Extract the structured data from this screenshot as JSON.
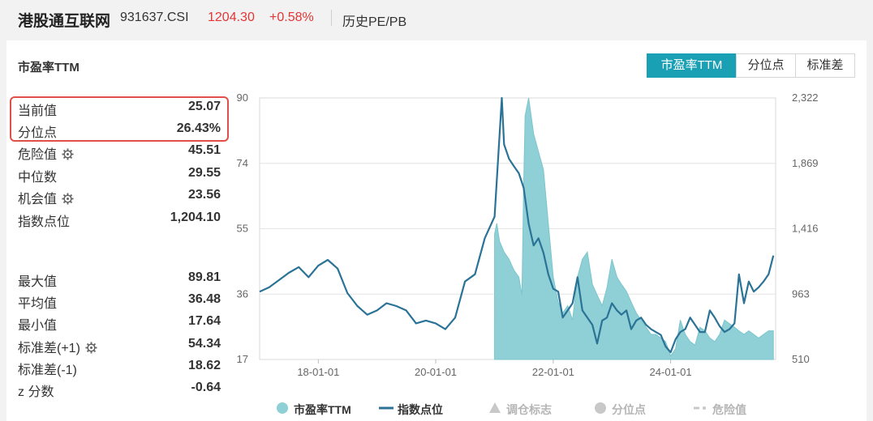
{
  "header": {
    "name": "港股通互联网",
    "code": "931637.CSI",
    "price": "1204.30",
    "change": "+0.58%",
    "link": "历史PE/PB"
  },
  "panel": {
    "title": "市盈率TTM",
    "segments": [
      {
        "label": "市盈率TTM",
        "active": true
      },
      {
        "label": "分位点",
        "active": false
      },
      {
        "label": "标准差",
        "active": false
      }
    ]
  },
  "stats": [
    {
      "label": "当前值",
      "value": "25.07",
      "gear": false
    },
    {
      "label": "分位点",
      "value": "26.43%",
      "gear": false
    },
    {
      "label": "危险值",
      "value": "45.51",
      "gear": true
    },
    {
      "label": "中位数",
      "value": "29.55",
      "gear": false
    },
    {
      "label": "机会值",
      "value": "23.56",
      "gear": true
    },
    {
      "label": "指数点位",
      "value": "1,204.10",
      "gear": false
    },
    {
      "label": "最大值",
      "value": "89.81",
      "gear": false
    },
    {
      "label": "平均值",
      "value": "36.48",
      "gear": false
    },
    {
      "label": "最小值",
      "value": "17.64",
      "gear": false
    },
    {
      "label": "标准差(+1)",
      "value": "54.34",
      "gear": true
    },
    {
      "label": "标准差(-1)",
      "value": "18.62",
      "gear": false
    },
    {
      "label": "z 分数",
      "value": "-0.64",
      "gear": false
    }
  ],
  "chart_data": {
    "type": "line",
    "left_axis": {
      "ticks": [
        "90",
        "74",
        "55",
        "36",
        "17"
      ],
      "range": [
        17,
        90
      ]
    },
    "right_axis": {
      "ticks": [
        "2,322",
        "1,869",
        "1,416",
        "963",
        "510"
      ],
      "range": [
        510,
        2322
      ]
    },
    "x_ticks": [
      "18-01-01",
      "20-01-01",
      "22-01-01",
      "24-01-01"
    ],
    "x_range": [
      "2017-01-01",
      "2025-10-15"
    ],
    "colors": {
      "pe_area": "#8fd0d6",
      "index_line": "#2b7396",
      "grid": "#e4e4e4"
    },
    "series": [
      {
        "name": "市盈率TTM",
        "axis": "left",
        "start": "2021-01-01",
        "dates": [
          "2021-01-01",
          "2021-01-15",
          "2021-02-01",
          "2021-03-01",
          "2021-04-01",
          "2021-05-01",
          "2021-06-01",
          "2021-06-20",
          "2021-07-01",
          "2021-07-10",
          "2021-08-01",
          "2021-09-01",
          "2021-10-01",
          "2021-11-01",
          "2021-12-01",
          "2022-01-01",
          "2022-02-01",
          "2022-03-01",
          "2022-04-01",
          "2022-05-01",
          "2022-06-01",
          "2022-07-01",
          "2022-08-01",
          "2022-09-01",
          "2022-10-01",
          "2022-11-01",
          "2022-12-01",
          "2023-01-01",
          "2023-02-01",
          "2023-03-01",
          "2023-04-01",
          "2023-05-01",
          "2023-06-01",
          "2023-07-01",
          "2023-08-01",
          "2023-09-01",
          "2023-10-01",
          "2023-11-01",
          "2023-12-01",
          "2024-01-01",
          "2024-02-01",
          "2024-03-01",
          "2024-04-01",
          "2024-05-01",
          "2024-06-01",
          "2024-07-01",
          "2024-08-01",
          "2024-09-01",
          "2024-10-01",
          "2024-11-01",
          "2024-12-01",
          "2025-01-01",
          "2025-02-01",
          "2025-03-01",
          "2025-04-01",
          "2025-05-01",
          "2025-06-01",
          "2025-07-01",
          "2025-08-01",
          "2025-09-01",
          "2025-10-01"
        ],
        "values": [
          52,
          55,
          50,
          47,
          45,
          42,
          40,
          35,
          65,
          85,
          90,
          80,
          75,
          70,
          55,
          40,
          33,
          30,
          32,
          28,
          40,
          45,
          47,
          38,
          35,
          32,
          37,
          45,
          40,
          38,
          36,
          33,
          30,
          28,
          26,
          24,
          24,
          23,
          22,
          18,
          20,
          28,
          24,
          22,
          21,
          26,
          25,
          23,
          22,
          24,
          28,
          27,
          26,
          25,
          24,
          25,
          24,
          23,
          24,
          25,
          25
        ]
      },
      {
        "name": "指数点位",
        "axis": "right",
        "dates": [
          "2017-01-01",
          "2017-03-01",
          "2017-05-01",
          "2017-07-01",
          "2017-09-01",
          "2017-11-01",
          "2018-01-01",
          "2018-03-01",
          "2018-05-01",
          "2018-07-01",
          "2018-09-01",
          "2018-11-01",
          "2019-01-01",
          "2019-03-01",
          "2019-05-01",
          "2019-07-01",
          "2019-09-01",
          "2019-11-01",
          "2020-01-01",
          "2020-03-01",
          "2020-05-01",
          "2020-07-01",
          "2020-09-01",
          "2020-11-01",
          "2021-01-01",
          "2021-02-15",
          "2021-03-01",
          "2021-04-01",
          "2021-05-01",
          "2021-06-01",
          "2021-07-01",
          "2021-08-01",
          "2021-09-01",
          "2021-10-01",
          "2021-11-01",
          "2021-12-01",
          "2022-01-01",
          "2022-02-01",
          "2022-03-01",
          "2022-04-01",
          "2022-05-01",
          "2022-06-01",
          "2022-07-01",
          "2022-08-01",
          "2022-09-01",
          "2022-10-01",
          "2022-11-01",
          "2022-12-01",
          "2023-01-01",
          "2023-02-01",
          "2023-03-01",
          "2023-04-01",
          "2023-05-01",
          "2023-06-01",
          "2023-07-01",
          "2023-08-01",
          "2023-09-01",
          "2023-10-01",
          "2023-11-01",
          "2023-12-01",
          "2024-01-01",
          "2024-02-01",
          "2024-03-01",
          "2024-04-01",
          "2024-05-01",
          "2024-06-01",
          "2024-07-01",
          "2024-08-01",
          "2024-09-01",
          "2024-10-01",
          "2024-11-01",
          "2024-12-01",
          "2025-01-01",
          "2025-02-01",
          "2025-03-01",
          "2025-04-01",
          "2025-05-01",
          "2025-06-01",
          "2025-07-01",
          "2025-08-01",
          "2025-09-01",
          "2025-10-01"
        ],
        "values": [
          980,
          1010,
          1060,
          1110,
          1150,
          1080,
          1160,
          1200,
          1140,
          970,
          880,
          820,
          850,
          900,
          880,
          850,
          760,
          780,
          760,
          720,
          800,
          1050,
          1100,
          1350,
          1500,
          2322,
          2000,
          1900,
          1850,
          1800,
          1700,
          1450,
          1300,
          1350,
          1250,
          1100,
          1000,
          980,
          800,
          850,
          900,
          1080,
          850,
          800,
          750,
          620,
          780,
          800,
          900,
          850,
          820,
          850,
          720,
          780,
          800,
          750,
          720,
          700,
          680,
          600,
          560,
          650,
          700,
          720,
          800,
          750,
          700,
          700,
          850,
          800,
          740,
          700,
          720,
          760,
          1100,
          900,
          1050,
          980,
          1010,
          1050,
          1100,
          1230
        ]
      }
    ]
  },
  "legend": [
    {
      "label": "市盈率TTM",
      "active": true,
      "symbol": "circle"
    },
    {
      "label": "指数点位",
      "active": true,
      "symbol": "line"
    },
    {
      "label": "调仓标志",
      "active": false,
      "symbol": "triangle"
    },
    {
      "label": "分位点",
      "active": false,
      "symbol": "circle"
    },
    {
      "label": "危险值",
      "active": false,
      "symbol": "dash"
    }
  ]
}
